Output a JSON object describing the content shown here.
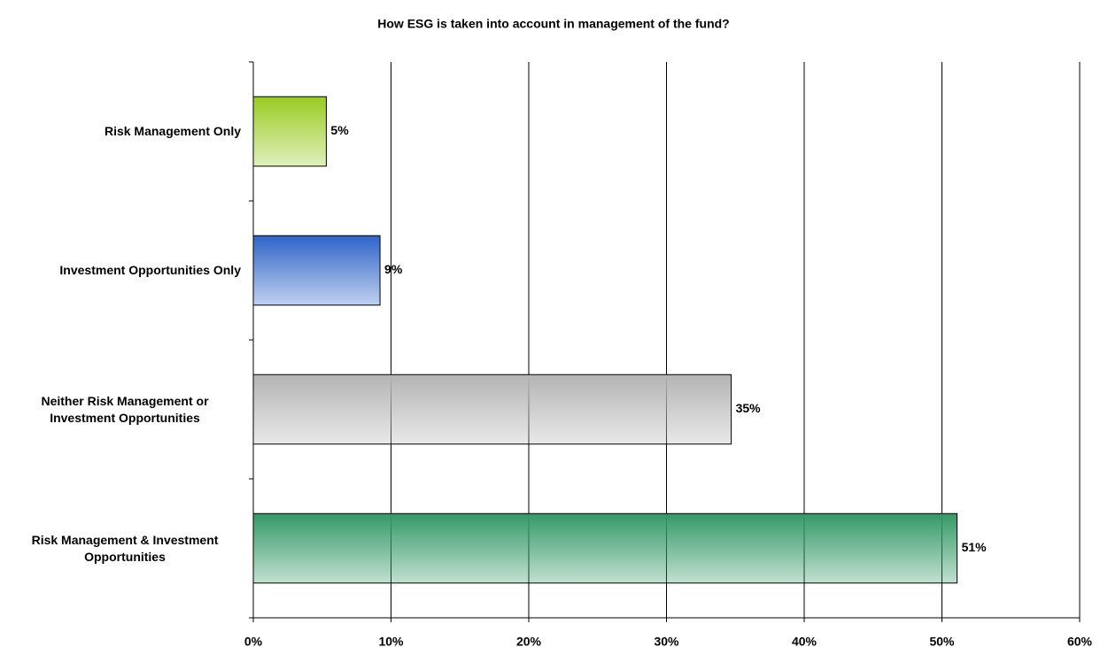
{
  "chart_data": {
    "type": "hbar",
    "title": "How ESG is taken into account in management of the fund?",
    "categories": [
      "Risk Management Only",
      "Investment Opportunities Only",
      "Neither Risk Management or Investment Opportunities",
      "Risk Management & Investment Opportunities"
    ],
    "values": [
      5.3,
      9.2,
      34.7,
      51.1
    ],
    "value_labels": [
      "5%",
      "9%",
      "35%",
      "51%"
    ],
    "colors": [
      "#99cc22",
      "#2e64c8",
      "#b4b4b4",
      "#339966"
    ],
    "xlim": [
      0,
      60
    ],
    "xticks": [
      {
        "value": 0,
        "label": "0%"
      },
      {
        "value": 10,
        "label": "10%"
      },
      {
        "value": 20,
        "label": "20%"
      },
      {
        "value": 30,
        "label": "30%"
      },
      {
        "value": 40,
        "label": "40%"
      },
      {
        "value": 50,
        "label": "50%"
      },
      {
        "value": 60,
        "label": "60%"
      }
    ],
    "grid": true
  }
}
